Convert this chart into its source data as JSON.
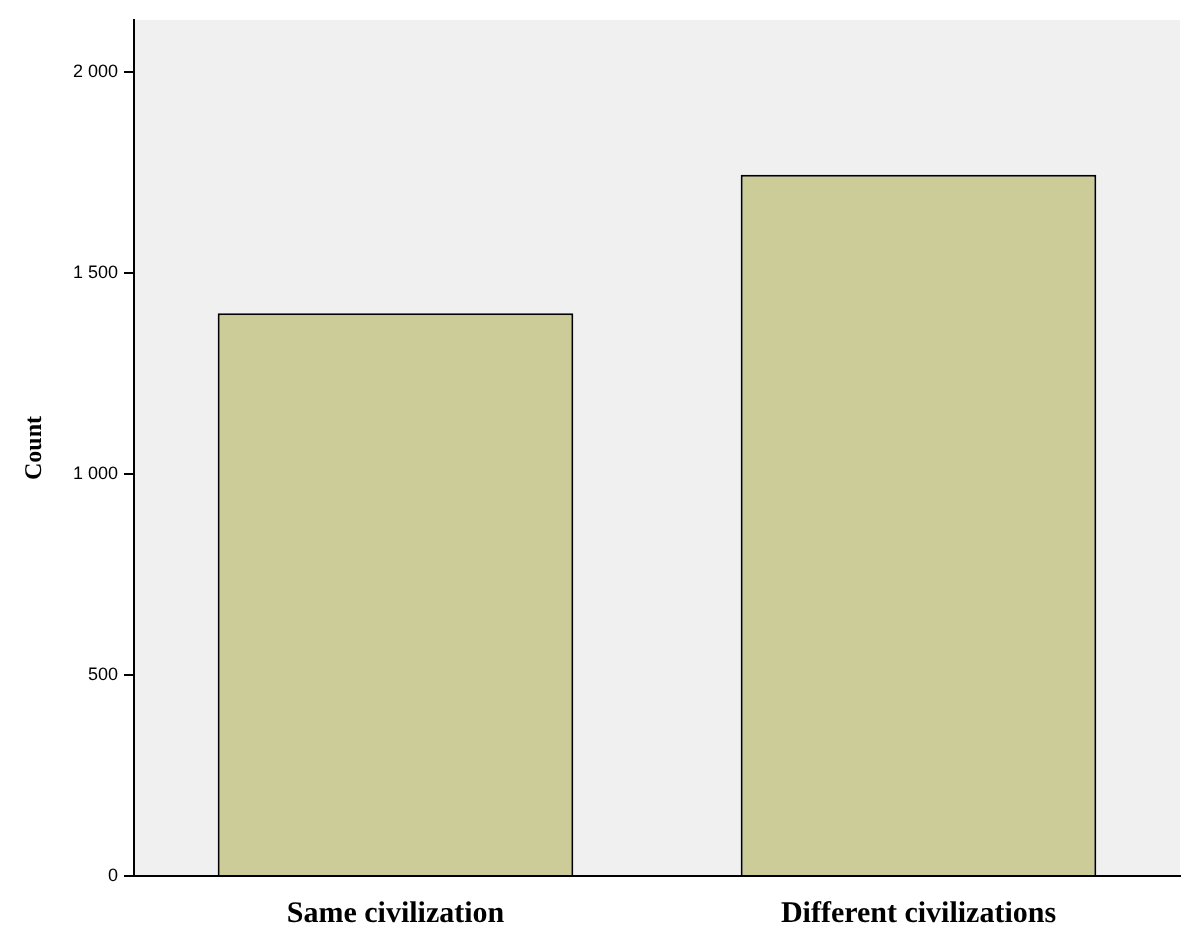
{
  "chart_data": {
    "type": "bar",
    "ylabel": "Count",
    "categories": [
      "Same civilization",
      "Different civilizations"
    ],
    "values": [
      1400,
      1745
    ],
    "color": "#cccc99",
    "ylim": [
      0,
      2130
    ],
    "yticks": [
      0,
      500,
      {
        "value": 1000,
        "label": "1 000"
      },
      {
        "value": 1500,
        "label": "1 500"
      },
      {
        "value": 2000,
        "label": "2 000"
      }
    ],
    "grid": false,
    "legend": false
  }
}
